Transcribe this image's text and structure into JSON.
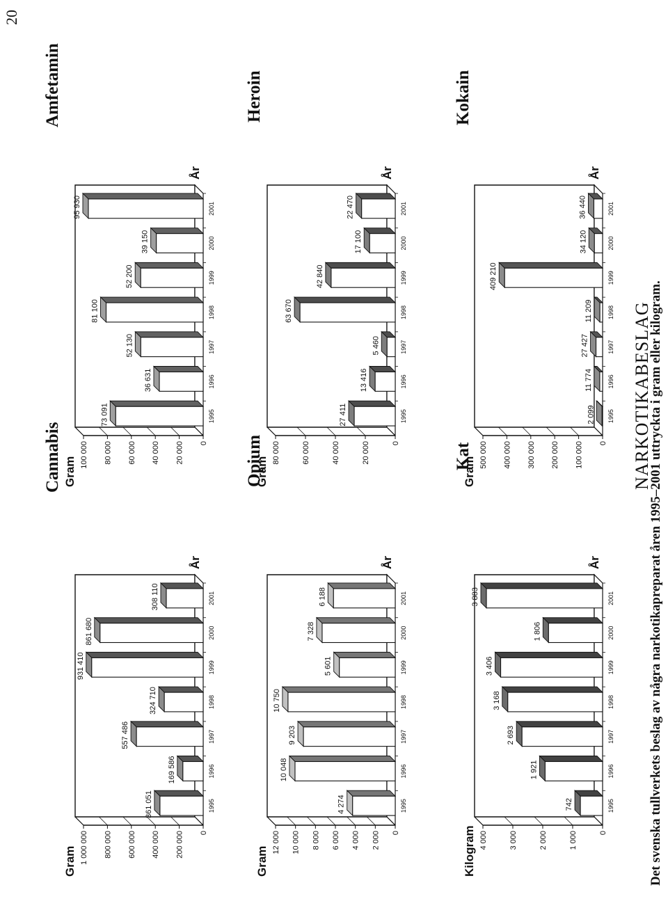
{
  "page": {
    "number": "20",
    "title": "NARKOTIKABESLAG",
    "caption": "Det svenska tullverkets beslag av några narkotikapreparat åren 1995–2001 uttryckta i gram eller kilogram."
  },
  "chart_data": [
    {
      "type": "bar",
      "title": "Cannabis",
      "ylabel": "Gram",
      "xlabel": "År",
      "categories": [
        "1995",
        "1996",
        "1997",
        "1998",
        "1999",
        "2000",
        "2001"
      ],
      "values": [
        361051,
        169586,
        557486,
        324710,
        931410,
        861680,
        308110
      ],
      "value_labels": [
        "361 051",
        "169 586",
        "557 486",
        "324 710",
        "931 410",
        "861 680",
        "308 110"
      ],
      "ylim": [
        0,
        1000000
      ],
      "y_ticks": [
        0,
        200000,
        400000,
        600000,
        800000,
        1000000
      ],
      "y_tick_labels": [
        "0",
        "200 000",
        "400 000",
        "600 000",
        "800 000",
        "1 000 000"
      ],
      "bar_shade": "#7a7a7a"
    },
    {
      "type": "bar",
      "title": "Amfetamin",
      "ylabel": "Gram",
      "xlabel": "År",
      "categories": [
        "1995",
        "1996",
        "1997",
        "1998",
        "1999",
        "2000",
        "2001"
      ],
      "values": [
        73091,
        36631,
        52130,
        81100,
        52200,
        39150,
        95930
      ],
      "value_labels": [
        "73 091",
        "36 631",
        "52 130",
        "81 100",
        "52 200",
        "39 150",
        "95 930"
      ],
      "ylim": [
        0,
        100000
      ],
      "y_ticks": [
        0,
        20000,
        40000,
        60000,
        80000,
        100000
      ],
      "y_tick_labels": [
        "0",
        "20 000",
        "40 000",
        "60 000",
        "80 000",
        "100 000"
      ],
      "bar_shade": "#8a8a8a"
    },
    {
      "type": "bar",
      "title": "Opium",
      "ylabel": "Gram",
      "xlabel": "År",
      "categories": [
        "1995",
        "1996",
        "1997",
        "1998",
        "1999",
        "2000",
        "2001"
      ],
      "values": [
        4274,
        10048,
        9203,
        10750,
        5601,
        7328,
        6188
      ],
      "value_labels": [
        "4 274",
        "10 048",
        "9 203",
        "10 750",
        "5 601",
        "7 328",
        "6 188"
      ],
      "ylim": [
        0,
        12000
      ],
      "y_ticks": [
        0,
        2000,
        4000,
        6000,
        8000,
        10000,
        12000
      ],
      "y_tick_labels": [
        "0",
        "2 000",
        "4 000",
        "6 000",
        "8 000",
        "10 000",
        "12 000"
      ],
      "bar_shade": "#a8a8a8"
    },
    {
      "type": "bar",
      "title": "Heroin",
      "ylabel": "Gram",
      "xlabel": "År",
      "categories": [
        "1995",
        "1996",
        "1997",
        "1998",
        "1999",
        "2000",
        "2001"
      ],
      "values": [
        27411,
        13416,
        5460,
        63670,
        42840,
        17100,
        22470
      ],
      "value_labels": [
        "27 411",
        "13 416",
        "5 460",
        "63 670",
        "42 840",
        "17 100",
        "22 470"
      ],
      "ylim": [
        0,
        80000
      ],
      "y_ticks": [
        0,
        20000,
        40000,
        60000,
        80000
      ],
      "y_tick_labels": [
        "0",
        "20 000",
        "40 000",
        "60 000",
        "80 000"
      ],
      "bar_shade": "#6e6e6e"
    },
    {
      "type": "bar",
      "title": "Kat",
      "ylabel": "Kilogram",
      "xlabel": "År",
      "categories": [
        "1995",
        "1996",
        "1997",
        "1998",
        "1999",
        "2000",
        "2001"
      ],
      "values": [
        742,
        1921,
        2693,
        3168,
        3406,
        1806,
        3883
      ],
      "value_labels": [
        "742",
        "1 921",
        "2 693",
        "3 168",
        "3 406",
        "1 806",
        "3 883"
      ],
      "ylim": [
        0,
        4000
      ],
      "y_ticks": [
        0,
        1000,
        2000,
        3000,
        4000
      ],
      "y_tick_labels": [
        "0",
        "1 000",
        "2 000",
        "3 000",
        "4 000"
      ],
      "bar_shade": "#5e5e5e"
    },
    {
      "type": "bar",
      "title": "Kokain",
      "ylabel": "Gram",
      "xlabel": "År",
      "categories": [
        "1995",
        "1996",
        "1997",
        "1998",
        "1999",
        "2000",
        "2001"
      ],
      "values": [
        2099,
        11774,
        27427,
        11209,
        409210,
        34120,
        36440
      ],
      "value_labels": [
        "2 099",
        "11 774",
        "27 427",
        "11 209",
        "409 210",
        "34 120",
        "36 440"
      ],
      "ylim": [
        0,
        500000
      ],
      "y_ticks": [
        0,
        100000,
        200000,
        300000,
        400000,
        500000
      ],
      "y_tick_labels": [
        "0",
        "100 000",
        "200 000",
        "300 000",
        "400 000",
        "500 000"
      ],
      "bar_shade": "#7a7a7a"
    }
  ]
}
